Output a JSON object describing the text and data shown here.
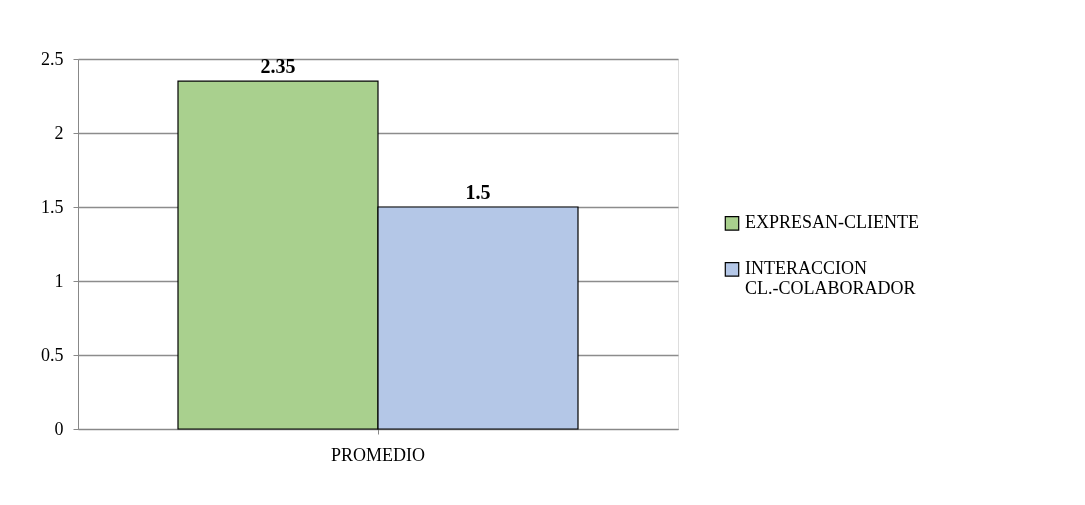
{
  "chart_data": {
    "type": "bar",
    "categories": [
      "PROMEDIO"
    ],
    "series": [
      {
        "name": "EXPRESAN-CLIENTE",
        "color": "#a9d08e",
        "values": [
          2.35
        ]
      },
      {
        "name": "INTERACCION CL.-COLABORADOR",
        "color": "#b4c7e7",
        "values": [
          1.5
        ]
      }
    ],
    "ylim": [
      0,
      2.5
    ],
    "yticks": [
      0,
      0.5,
      1,
      1.5,
      2,
      2.5
    ],
    "grid": "y",
    "legend": "right",
    "data_labels": true
  }
}
